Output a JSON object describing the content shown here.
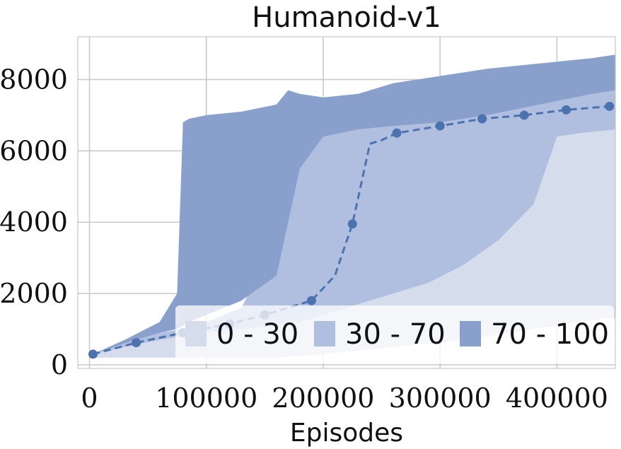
{
  "chart_data": {
    "type": "area",
    "title": "Humanoid-v1",
    "xlabel": "Episodes",
    "ylabel": "",
    "xlim": [
      -10000,
      450000
    ],
    "ylim": [
      -100,
      9200
    ],
    "xticks": [
      0,
      100000,
      200000,
      300000,
      400000
    ],
    "xtick_labels": [
      "0",
      "100000",
      "200000",
      "300000",
      "400000"
    ],
    "yticks": [
      0,
      2000,
      4000,
      6000,
      8000
    ],
    "ytick_labels": [
      "0",
      "2000",
      "4000",
      "6000",
      "8000"
    ],
    "grid": true,
    "legend_position": "bottom-right",
    "colors": {
      "band_0_30": "#d5dcec",
      "band_30_70": "#b0bfdf",
      "band_70_100": "#8aa0cc",
      "median_line": "#4c72b0",
      "grid": "#c8c8c8",
      "plot_bg": "#ffffff"
    },
    "series": [
      {
        "name": "0 - 30",
        "x": [
          3000,
          30000,
          60000,
          80000,
          100000,
          130000,
          160000,
          200000,
          230000,
          260000,
          290000,
          320000,
          340000,
          360000,
          380000,
          400000,
          420000,
          440000,
          450000
        ],
        "lower": [
          200,
          200,
          200,
          200,
          200,
          200,
          200,
          300,
          400,
          500,
          600,
          700,
          800,
          900,
          1000,
          1100,
          1200,
          1300,
          1300
        ],
        "upper": [
          300,
          500,
          700,
          800,
          900,
          1000,
          1100,
          1400,
          1700,
          2000,
          2300,
          2800,
          3500,
          4200,
          4800,
          6400,
          6500,
          6600,
          6600
        ]
      },
      {
        "name": "30 - 70",
        "x": [
          3000,
          30000,
          60000,
          80000,
          100000,
          130000,
          160000,
          180000,
          200000,
          230000,
          260000,
          290000,
          320000,
          350000,
          380000,
          400000,
          420000,
          450000
        ],
        "lower": [
          300,
          500,
          700,
          800,
          900,
          1000,
          1100,
          1200,
          1400,
          1700,
          2000,
          2300,
          2800,
          3500,
          4500,
          6400,
          6500,
          6600
        ],
        "upper": [
          300,
          600,
          900,
          1000,
          1200,
          1600,
          3500,
          5500,
          6400,
          6600,
          6700,
          6800,
          7000,
          7200,
          7400,
          7500,
          7600,
          7700
        ]
      },
      {
        "name": "70 - 100",
        "x": [
          3000,
          30000,
          60000,
          75000,
          80000,
          85000,
          100000,
          130000,
          160000,
          170000,
          180000,
          200000,
          230000,
          260000,
          300000,
          340000,
          370000,
          400000,
          430000,
          450000
        ],
        "lower": [
          300,
          600,
          900,
          1000,
          1100,
          1200,
          1400,
          1800,
          2500,
          4000,
          5500,
          6400,
          6600,
          6700,
          6800,
          7000,
          7200,
          7400,
          7600,
          7700
        ],
        "upper": [
          300,
          700,
          1200,
          2000,
          6800,
          6900,
          7000,
          7100,
          7300,
          7700,
          7600,
          7500,
          7600,
          7900,
          8100,
          8300,
          8400,
          8500,
          8600,
          8700
        ]
      },
      {
        "name": "median",
        "style": "dashed",
        "x": [
          3000,
          40000,
          80000,
          120000,
          150000,
          190000,
          210000,
          225000,
          240000,
          250000,
          263000,
          300000,
          336000,
          372000,
          408000,
          445000
        ],
        "y": [
          300,
          620,
          900,
          1150,
          1400,
          1800,
          2500,
          3950,
          6200,
          6300,
          6500,
          6700,
          6900,
          7000,
          7150,
          7250
        ],
        "markers_x": [
          3000,
          40000,
          80000,
          120000,
          150000,
          190000,
          225000,
          263000,
          300000,
          336000,
          372000,
          408000,
          445000
        ],
        "markers_y": [
          300,
          620,
          900,
          1150,
          1400,
          1800,
          3950,
          6500,
          6700,
          6900,
          7000,
          7150,
          7250
        ]
      }
    ]
  }
}
